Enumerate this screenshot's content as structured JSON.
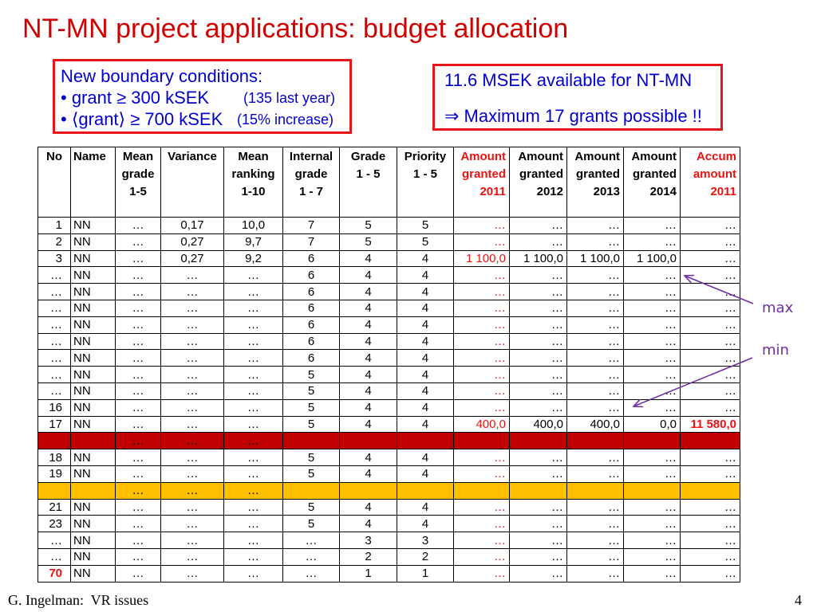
{
  "title": "NT-MN project applications: budget allocation",
  "conditions_box": {
    "heading": "New boundary conditions:",
    "rules": [
      {
        "text": "• grant ≥ 300 kSEK",
        "note": "(135 last year)"
      },
      {
        "text": "• ⟨grant⟩ ≥ 700 kSEK",
        "note": "(15% increase)"
      }
    ]
  },
  "budget_box": {
    "available": "11.6 MSEK available for NT-MN",
    "conclusion": "⇒ Maximum 17 grants possible !!"
  },
  "table": {
    "columns": [
      {
        "header": [
          "No"
        ]
      },
      {
        "header": [
          "Name"
        ]
      },
      {
        "header": [
          "Mean",
          "grade",
          "1-5"
        ]
      },
      {
        "header": [
          "Variance"
        ]
      },
      {
        "header": [
          "Mean",
          "ranking",
          "1-10"
        ]
      },
      {
        "header": [
          "Internal",
          "grade",
          "1 - 7"
        ]
      },
      {
        "header": [
          "Grade",
          "1 - 5"
        ]
      },
      {
        "header": [
          "Priority",
          "1 - 5"
        ]
      },
      {
        "header": [
          "Amount",
          "granted",
          "2011"
        ],
        "header_color": "#ee1111",
        "text_color": "#ee1111"
      },
      {
        "header": [
          "Amount",
          "granted",
          "2012"
        ]
      },
      {
        "header": [
          "Amount",
          "granted",
          "2013"
        ]
      },
      {
        "header": [
          "Amount",
          "granted",
          "2014"
        ]
      },
      {
        "header": [
          "Accum",
          "amount",
          "2011"
        ],
        "header_color": "#ee1111"
      }
    ],
    "rows": [
      {
        "cells": [
          "1",
          "NN",
          "…",
          "0,17",
          "10,0",
          "7",
          "5",
          "5",
          "…",
          "…",
          "…",
          "…",
          "…"
        ]
      },
      {
        "cells": [
          "2",
          "NN",
          "…",
          "0,27",
          "9,7",
          "7",
          "5",
          "5",
          "…",
          "…",
          "…",
          "…",
          "…"
        ]
      },
      {
        "cells": [
          "3",
          "NN",
          "…",
          "0,27",
          "9,2",
          "6",
          "4",
          "4",
          "1 100,0",
          "1 100,0",
          "1 100,0",
          "1 100,0",
          "…"
        ]
      },
      {
        "cells": [
          "…",
          "NN",
          "…",
          "…",
          "…",
          "6",
          "4",
          "4",
          "…",
          "…",
          "…",
          "…",
          "…"
        ]
      },
      {
        "cells": [
          "…",
          "NN",
          "…",
          "…",
          "…",
          "6",
          "4",
          "4",
          "…",
          "…",
          "…",
          "…",
          "…"
        ]
      },
      {
        "cells": [
          "…",
          "NN",
          "…",
          "…",
          "…",
          "6",
          "4",
          "4",
          "…",
          "…",
          "…",
          "…",
          "…"
        ]
      },
      {
        "cells": [
          "…",
          "NN",
          "…",
          "…",
          "…",
          "6",
          "4",
          "4",
          "…",
          "…",
          "…",
          "…",
          "…"
        ]
      },
      {
        "cells": [
          "…",
          "NN",
          "…",
          "…",
          "…",
          "6",
          "4",
          "4",
          "…",
          "…",
          "…",
          "…",
          "…"
        ]
      },
      {
        "cells": [
          "…",
          "NN",
          "…",
          "…",
          "…",
          "6",
          "4",
          "4",
          "…",
          "…",
          "…",
          "…",
          "…"
        ]
      },
      {
        "cells": [
          "…",
          "NN",
          "…",
          "…",
          "…",
          "5",
          "4",
          "4",
          "…",
          "…",
          "…",
          "…",
          "…"
        ]
      },
      {
        "cells": [
          "…",
          "NN",
          "…",
          "…",
          "…",
          "5",
          "4",
          "4",
          "…",
          "…",
          "…",
          "…",
          "…"
        ]
      },
      {
        "cells": [
          "16",
          "NN",
          "…",
          "…",
          "…",
          "5",
          "4",
          "4",
          "…",
          "…",
          "…",
          "…",
          "…"
        ]
      },
      {
        "cells": [
          "17",
          "NN",
          "…",
          "…",
          "…",
          "5",
          "4",
          "4",
          "400,0",
          "400,0",
          "400,0",
          "0,0",
          {
            "value": "11 580,0",
            "color": "#ee1111",
            "bold": true
          }
        ]
      },
      {
        "fill": "#c00000",
        "cells": [
          "",
          "",
          "…",
          "…",
          "…",
          "",
          "",
          "",
          "",
          "",
          "",
          "",
          ""
        ]
      },
      {
        "cells": [
          "18",
          "NN",
          "…",
          "…",
          "…",
          "5",
          "4",
          "4",
          "…",
          "…",
          "…",
          "…",
          "…"
        ]
      },
      {
        "cells": [
          "19",
          "NN",
          "…",
          "…",
          "…",
          "5",
          "4",
          "4",
          "…",
          "…",
          "…",
          "…",
          "…"
        ]
      },
      {
        "fill": "#ffc000",
        "cells": [
          "",
          "",
          "…",
          "…",
          "…",
          "",
          "",
          "",
          "",
          "",
          "",
          "",
          ""
        ]
      },
      {
        "cells": [
          "21",
          "NN",
          "…",
          "…",
          "…",
          "5",
          "4",
          "4",
          "…",
          "…",
          "…",
          "…",
          "…"
        ]
      },
      {
        "cells": [
          "23",
          "NN",
          "…",
          "…",
          "…",
          "5",
          "4",
          "4",
          "…",
          "…",
          "…",
          "…",
          "…"
        ]
      },
      {
        "cells": [
          "…",
          "NN",
          "…",
          "…",
          "…",
          "…",
          "3",
          "3",
          "…",
          "…",
          "…",
          "…",
          "…"
        ]
      },
      {
        "cells": [
          "…",
          "NN",
          "…",
          "…",
          "…",
          "…",
          "2",
          "2",
          "…",
          "…",
          "…",
          "…",
          "…"
        ]
      },
      {
        "cells": [
          {
            "value": "70",
            "color": "#ee1111",
            "bold": true
          },
          "NN",
          "…",
          "…",
          "…",
          "…",
          "1",
          "1",
          "…",
          "…",
          "…",
          "…",
          "…"
        ]
      }
    ]
  },
  "annotations": {
    "max_label": "max",
    "min_label": "min"
  },
  "footer": {
    "author": "G. Ingelman:  VR issues",
    "page_number": "4"
  },
  "colors": {
    "title": "#d00000",
    "box_border": "#e8141b",
    "box_text": "#0000cc",
    "annotation": "#7030a0"
  }
}
